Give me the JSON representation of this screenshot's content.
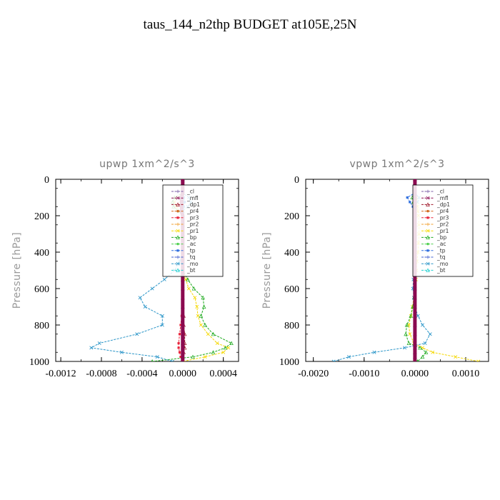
{
  "figure_title": "taus_144_n2thp  BUDGET at105E,25N",
  "chart_data": [
    {
      "type": "line",
      "title": "upwp   1xm^2/s^3",
      "ylabel": "Pressure [hPa]",
      "xlabel": "",
      "xlim": [
        -0.00125,
        0.00055
      ],
      "ylim": [
        1000,
        0
      ],
      "xticks": [
        -0.0012,
        -0.0008,
        -0.0004,
        0.0,
        0.0004
      ],
      "xtick_labels": [
        "-0.0012",
        "-0.0008",
        "-0.0004",
        "0.0000",
        "0.0004"
      ],
      "yticks": [
        0,
        200,
        400,
        600,
        800,
        1000
      ],
      "ytick_labels": [
        "0",
        "200",
        "400",
        "600",
        "800",
        "1000"
      ],
      "legend_position": "top-right",
      "y": [
        0,
        25,
        50,
        75,
        100,
        125,
        150,
        175,
        200,
        250,
        300,
        350,
        400,
        450,
        500,
        550,
        600,
        650,
        700,
        750,
        800,
        850,
        900,
        925,
        950,
        975,
        1000
      ],
      "series": [
        {
          "name": "_cl",
          "color": "#7b5ea7",
          "values": [
            0,
            0,
            0,
            0,
            0,
            0,
            0,
            0,
            0,
            0,
            0,
            0,
            0,
            0,
            0,
            0,
            0,
            0,
            0,
            0,
            0,
            0,
            0,
            0,
            0,
            0,
            0
          ]
        },
        {
          "name": "_mfl",
          "color": "#8b0a50",
          "values": [
            0,
            0,
            0,
            0,
            -1e-05,
            -1e-05,
            -1e-05,
            -1e-05,
            0,
            0,
            0,
            0,
            0,
            0,
            0,
            0,
            0,
            0,
            0,
            0,
            0,
            0,
            0,
            0,
            0,
            0,
            0
          ]
        },
        {
          "name": "_dp1",
          "color": "#a0182a",
          "values": [
            0,
            0,
            0,
            0,
            0,
            0,
            0,
            0,
            0,
            0,
            0,
            0,
            0,
            0,
            0,
            0,
            0,
            0,
            0,
            1e-05,
            1e-05,
            2e-05,
            2e-05,
            2e-05,
            1e-05,
            0,
            0
          ]
        },
        {
          "name": "_pr4",
          "color": "#d2691e",
          "values": [
            0,
            0,
            0,
            0,
            0,
            0,
            0,
            0,
            0,
            0,
            0,
            0,
            0,
            0,
            0,
            0,
            0,
            0,
            0,
            0,
            0,
            0,
            0,
            0,
            0,
            0,
            0
          ]
        },
        {
          "name": "_pr3",
          "color": "#e8243c",
          "values": [
            0,
            0,
            0,
            0,
            0,
            0,
            0,
            0,
            0,
            0,
            0,
            0,
            0,
            0,
            0,
            0,
            0,
            0,
            0,
            -1e-05,
            -2e-05,
            -3e-05,
            -4e-05,
            -4e-05,
            -3e-05,
            -2e-05,
            0
          ]
        },
        {
          "name": "_pr2",
          "color": "#f0a030",
          "values": [
            0,
            0,
            0,
            0,
            -2e-05,
            -2e-05,
            -1e-05,
            0,
            0,
            0,
            0,
            0,
            0,
            0,
            0,
            0,
            0,
            0,
            0,
            0,
            0,
            0,
            0,
            0,
            0,
            0,
            0
          ]
        },
        {
          "name": "_pr1",
          "color": "#f5d800",
          "values": [
            0,
            0,
            0,
            0,
            -7e-05,
            -8e-05,
            -6e-05,
            -3e-05,
            0,
            0,
            0,
            0,
            0,
            0,
            0,
            3e-05,
            6e-05,
            0.00012,
            0.00014,
            0.00015,
            0.00018,
            0.00025,
            0.00034,
            0.00045,
            0.0004,
            0.00022,
            0
          ]
        },
        {
          "name": "_bp",
          "color": "#1faa1f",
          "values": [
            0,
            0,
            0,
            0,
            -8e-05,
            -0.0001,
            -9e-05,
            -4e-05,
            0,
            0,
            0,
            0,
            0,
            0,
            0,
            5e-05,
            0.00011,
            0.0002,
            0.00021,
            0.00018,
            0.00022,
            0.0003,
            0.00048,
            0.00042,
            0.0003,
            0.0001,
            -0.0003
          ]
        },
        {
          "name": "_ac",
          "color": "#50d050",
          "values": [
            0,
            0,
            0,
            0,
            0,
            0,
            0,
            0,
            0,
            0,
            0,
            0,
            0,
            0,
            0,
            0,
            0,
            0,
            0,
            0,
            0,
            0,
            0,
            0,
            0,
            0,
            0
          ]
        },
        {
          "name": "_tp",
          "color": "#3070e0",
          "values": [
            0,
            0,
            0,
            0,
            1e-05,
            2e-05,
            1e-05,
            0,
            0,
            0,
            0,
            0,
            0,
            0,
            0,
            0,
            0,
            0,
            0,
            0,
            0,
            0,
            0,
            0,
            0,
            0,
            0
          ]
        },
        {
          "name": "_tq",
          "color": "#4060d0",
          "values": [
            0,
            0,
            0,
            0,
            0,
            0,
            0,
            0,
            0,
            0,
            0,
            0,
            0,
            0,
            0,
            0,
            0,
            0,
            0,
            0,
            0,
            0,
            0,
            0,
            0,
            0,
            0
          ]
        },
        {
          "name": "_mo",
          "color": "#2a95c8",
          "values": [
            0,
            0,
            0,
            0,
            6e-05,
            8e-05,
            5e-05,
            0,
            0,
            0,
            0,
            0,
            0,
            -3e-05,
            -8e-05,
            -0.00018,
            -0.0003,
            -0.00042,
            -0.00037,
            -0.0002,
            -0.0002,
            -0.00045,
            -0.00082,
            -0.0009,
            -0.0006,
            -0.00025,
            -0.0001
          ]
        },
        {
          "name": "_bt",
          "color": "#20d0d0",
          "values": [
            0,
            0,
            0,
            0,
            0,
            0,
            0,
            0,
            0,
            0,
            0,
            0,
            0,
            0,
            0,
            0,
            0,
            0,
            0,
            0,
            0,
            0,
            0,
            0,
            0,
            0,
            0
          ]
        }
      ]
    },
    {
      "type": "line",
      "title": "vpwp   1xm^2/s^3",
      "ylabel": "Pressure [hPa]",
      "xlabel": "",
      "xlim": [
        -0.00215,
        0.00145
      ],
      "ylim": [
        1000,
        0
      ],
      "xticks": [
        -0.002,
        -0.001,
        0.0,
        0.001
      ],
      "xtick_labels": [
        "-0.0020",
        "-0.0010",
        "0.0000",
        "0.0010"
      ],
      "yticks": [
        0,
        200,
        400,
        600,
        800,
        1000
      ],
      "ytick_labels": [
        "0",
        "200",
        "400",
        "600",
        "800",
        "1000"
      ],
      "legend_position": "top-right",
      "y": [
        0,
        25,
        50,
        75,
        100,
        125,
        150,
        175,
        200,
        250,
        300,
        350,
        400,
        450,
        500,
        550,
        600,
        650,
        700,
        750,
        800,
        850,
        900,
        925,
        950,
        975,
        1000
      ],
      "series": [
        {
          "name": "_cl",
          "color": "#7b5ea7",
          "values": [
            0,
            0,
            0,
            0,
            0,
            0,
            0,
            0,
            0,
            0,
            0,
            0,
            0,
            0,
            0,
            0,
            0,
            0,
            0,
            0,
            0,
            0,
            0,
            0,
            0,
            0,
            0
          ]
        },
        {
          "name": "_mfl",
          "color": "#8b0a50",
          "values": [
            0,
            0,
            0,
            0,
            0,
            0,
            0,
            0,
            0,
            0,
            0,
            0,
            0,
            0,
            0,
            0,
            0,
            0,
            0,
            0,
            0,
            0,
            0,
            0,
            0,
            0,
            0
          ]
        },
        {
          "name": "_dp1",
          "color": "#a0182a",
          "values": [
            0,
            0,
            0,
            0,
            0,
            0,
            0,
            0,
            0,
            0,
            0,
            0,
            0,
            0,
            0,
            0,
            0,
            0,
            0,
            0,
            0,
            0,
            0,
            0,
            0,
            0,
            0
          ]
        },
        {
          "name": "_pr4",
          "color": "#d2691e",
          "values": [
            0,
            0,
            0,
            0,
            0,
            0,
            0,
            0,
            0,
            0,
            0,
            0,
            0,
            0,
            0,
            0,
            0,
            0,
            0,
            0,
            0,
            0,
            0,
            0,
            0,
            0,
            0
          ]
        },
        {
          "name": "_pr3",
          "color": "#e8243c",
          "values": [
            0,
            0,
            0,
            0,
            0,
            0,
            0,
            0,
            0,
            0,
            0,
            0,
            0,
            0,
            0,
            0,
            0,
            0,
            0,
            0,
            0,
            0,
            0,
            0,
            0,
            0,
            0
          ]
        },
        {
          "name": "_pr2",
          "color": "#f0a030",
          "values": [
            0,
            0,
            0,
            0,
            0,
            0,
            0,
            0,
            0,
            0,
            0,
            0,
            0,
            0,
            0,
            0,
            0,
            0,
            0,
            0,
            0,
            0,
            0,
            0,
            0,
            0,
            0
          ]
        },
        {
          "name": "_pr1",
          "color": "#f5d800",
          "values": [
            0,
            0,
            0,
            0,
            3e-05,
            4e-05,
            5e-05,
            6e-05,
            7e-05,
            8e-05,
            8e-05,
            7e-05,
            6e-05,
            4e-05,
            3e-05,
            2e-05,
            0,
            -2e-05,
            -5e-05,
            -8e-05,
            -0.00012,
            -0.0001,
            -2e-05,
            0.00015,
            0.00035,
            0.0008,
            0.00125
          ]
        },
        {
          "name": "_bp",
          "color": "#1faa1f",
          "values": [
            0,
            0,
            0,
            0,
            -5e-05,
            -3e-05,
            0,
            0,
            0,
            0,
            0,
            0,
            0,
            0,
            0,
            0,
            0,
            -2e-05,
            -4e-05,
            -8e-05,
            -0.00016,
            -0.00018,
            -0.00012,
            0.0001,
            0.00022,
            0.00015,
            5e-05
          ]
        },
        {
          "name": "_ac",
          "color": "#50d050",
          "values": [
            0,
            0,
            0,
            0,
            0,
            0,
            0,
            0,
            0,
            0,
            0,
            0,
            0,
            0,
            0,
            0,
            0,
            0,
            0,
            0,
            0,
            0,
            0,
            0,
            0,
            0,
            0
          ]
        },
        {
          "name": "_tp",
          "color": "#3070e0",
          "values": [
            0,
            0,
            0,
            0,
            -0.00015,
            -0.0001,
            -4e-05,
            0,
            0,
            0,
            0,
            0,
            0,
            0,
            0,
            0,
            0,
            0,
            0,
            0,
            0,
            0,
            0,
            0,
            0,
            0,
            0
          ]
        },
        {
          "name": "_tq",
          "color": "#4060d0",
          "values": [
            0,
            0,
            0,
            0,
            0,
            0,
            0,
            0,
            0,
            0,
            0,
            0,
            0,
            0,
            0,
            0,
            0,
            0,
            0,
            0,
            0,
            0,
            0,
            0,
            0,
            0,
            0
          ]
        },
        {
          "name": "_mo",
          "color": "#2a95c8",
          "values": [
            0,
            0,
            0,
            0,
            8e-05,
            5e-05,
            0,
            0,
            0,
            0,
            0,
            0,
            0,
            0,
            0,
            -3e-05,
            -4e-05,
            -2e-05,
            0,
            6e-05,
            0.00015,
            0.0003,
            0.0002,
            -0.0002,
            -0.0008,
            -0.0013,
            -0.0016
          ]
        },
        {
          "name": "_bt",
          "color": "#20d0d0",
          "values": [
            0,
            0,
            0,
            0,
            0,
            0,
            0,
            0,
            0,
            0,
            0,
            0,
            0,
            0,
            0,
            0,
            0,
            0,
            0,
            0,
            0,
            0,
            0,
            0,
            0,
            0,
            0
          ]
        }
      ]
    }
  ]
}
